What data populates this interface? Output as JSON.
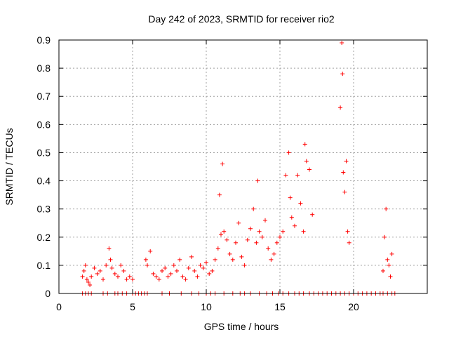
{
  "chart_data": {
    "type": "scatter",
    "title": "Day 242 of 2023, SRMTID for receiver rio2",
    "xlabel": "GPS time / hours",
    "ylabel": "SRMTID / TECUs",
    "xlim": [
      0,
      25
    ],
    "ylim": [
      0,
      0.9
    ],
    "xticks": [
      0,
      5,
      10,
      15,
      20
    ],
    "yticks": [
      0,
      0.1,
      0.2,
      0.3,
      0.4,
      0.5,
      0.6,
      0.7,
      0.8,
      0.9
    ],
    "xtick_labels": [
      "0",
      "5",
      "10",
      "15",
      "20"
    ],
    "ytick_labels": [
      "0",
      "0.1",
      "0.2",
      "0.3",
      "0.4",
      "0.5",
      "0.6",
      "0.7",
      "0.8",
      "0.9"
    ],
    "grid": true,
    "marker": "plus",
    "color": "#ff0000",
    "series": [
      {
        "name": "SRMTID",
        "x": [
          1.6,
          1.7,
          1.8,
          1.9,
          2.0,
          2.1,
          2.2,
          2.4,
          2.6,
          2.8,
          3.0,
          3.2,
          3.4,
          3.5,
          3.6,
          3.8,
          4.0,
          4.2,
          4.4,
          4.6,
          4.8,
          5.0,
          5.9,
          6.0,
          6.2,
          6.4,
          6.6,
          6.8,
          7.0,
          7.2,
          7.4,
          7.6,
          7.8,
          8.0,
          8.2,
          8.4,
          8.6,
          8.8,
          9.0,
          9.2,
          9.4,
          9.6,
          9.8,
          10.0,
          10.2,
          10.4,
          10.6,
          10.8,
          10.9,
          11.0,
          11.1,
          11.2,
          11.4,
          11.6,
          11.8,
          12.0,
          12.2,
          12.4,
          12.6,
          12.8,
          13.0,
          13.2,
          13.4,
          13.5,
          13.6,
          13.8,
          14.0,
          14.2,
          14.4,
          14.6,
          14.8,
          15.0,
          15.2,
          15.4,
          15.6,
          15.7,
          15.8,
          16.0,
          16.2,
          16.4,
          16.6,
          16.7,
          16.8,
          17.0,
          17.2,
          19.1,
          19.2,
          19.25,
          19.3,
          19.4,
          19.5,
          19.6,
          19.7,
          22.0,
          22.1,
          22.2,
          22.3,
          22.4,
          22.5,
          22.6
        ],
        "y": [
          0.06,
          0.08,
          0.1,
          0.05,
          0.04,
          0.03,
          0.06,
          0.09,
          0.07,
          0.08,
          0.05,
          0.1,
          0.16,
          0.12,
          0.09,
          0.07,
          0.06,
          0.1,
          0.08,
          0.05,
          0.06,
          0.05,
          0.12,
          0.1,
          0.15,
          0.07,
          0.06,
          0.05,
          0.08,
          0.09,
          0.06,
          0.07,
          0.1,
          0.08,
          0.12,
          0.06,
          0.05,
          0.09,
          0.13,
          0.08,
          0.06,
          0.1,
          0.09,
          0.11,
          0.07,
          0.08,
          0.12,
          0.16,
          0.35,
          0.21,
          0.46,
          0.22,
          0.19,
          0.14,
          0.12,
          0.18,
          0.25,
          0.13,
          0.1,
          0.19,
          0.23,
          0.3,
          0.18,
          0.4,
          0.22,
          0.2,
          0.26,
          0.16,
          0.12,
          0.14,
          0.18,
          0.2,
          0.22,
          0.42,
          0.5,
          0.34,
          0.27,
          0.24,
          0.42,
          0.32,
          0.22,
          0.53,
          0.47,
          0.44,
          0.28,
          0.66,
          0.89,
          0.78,
          0.43,
          0.36,
          0.47,
          0.22,
          0.18,
          0.08,
          0.2,
          0.3,
          0.12,
          0.1,
          0.06,
          0.14
        ]
      }
    ],
    "zero_x": [
      1.6,
      1.8,
      2.0,
      2.2,
      3.0,
      3.3,
      3.8,
      4.0,
      4.3,
      4.6,
      5.0,
      5.2,
      5.4,
      5.6,
      5.8,
      6.0,
      7.0,
      7.5,
      8.3,
      9.0,
      9.5,
      10.0,
      10.3,
      10.6,
      11.2,
      11.8,
      12.3,
      12.6,
      13.0,
      13.6,
      14.1,
      14.5,
      14.9,
      15.2,
      15.6,
      16.0,
      16.3,
      16.6,
      17.0,
      17.3,
      17.6,
      17.9,
      18.2,
      18.5,
      18.8,
      19.1,
      19.4,
      19.7,
      20.0,
      20.3,
      20.6,
      20.9,
      21.2,
      21.5,
      21.8,
      22.0,
      22.3,
      22.6,
      22.8
    ]
  }
}
